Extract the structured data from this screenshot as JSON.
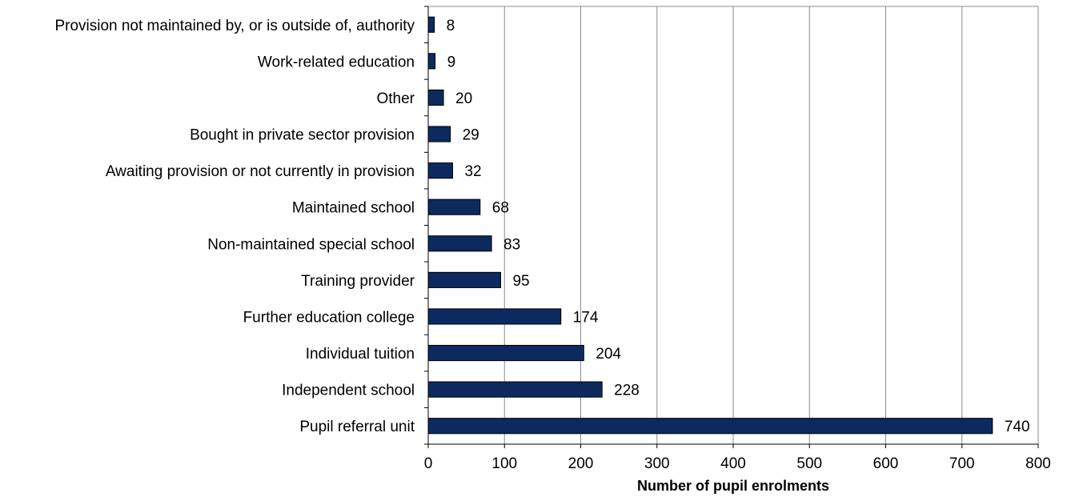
{
  "chart_data": {
    "type": "bar",
    "orientation": "horizontal",
    "title": "",
    "xlabel": "Number of pupil enrolments",
    "ylabel": "",
    "xlim": [
      0,
      800
    ],
    "x_ticks": [
      0,
      100,
      200,
      300,
      400,
      500,
      600,
      700,
      800
    ],
    "grid": "vertical",
    "legend": "none",
    "bar_color": "#0d2a5e",
    "categories": [
      "Provision not maintained by, or is outside of, authority",
      "Work-related education",
      "Other",
      "Bought in private sector provision",
      "Awaiting provision or not currently in provision",
      "Maintained school",
      "Non-maintained special school",
      "Training provider",
      "Further education college",
      "Individual tuition",
      "Independent school",
      "Pupil referral unit"
    ],
    "values": [
      8,
      9,
      20,
      29,
      32,
      68,
      83,
      95,
      174,
      204,
      228,
      740
    ]
  }
}
